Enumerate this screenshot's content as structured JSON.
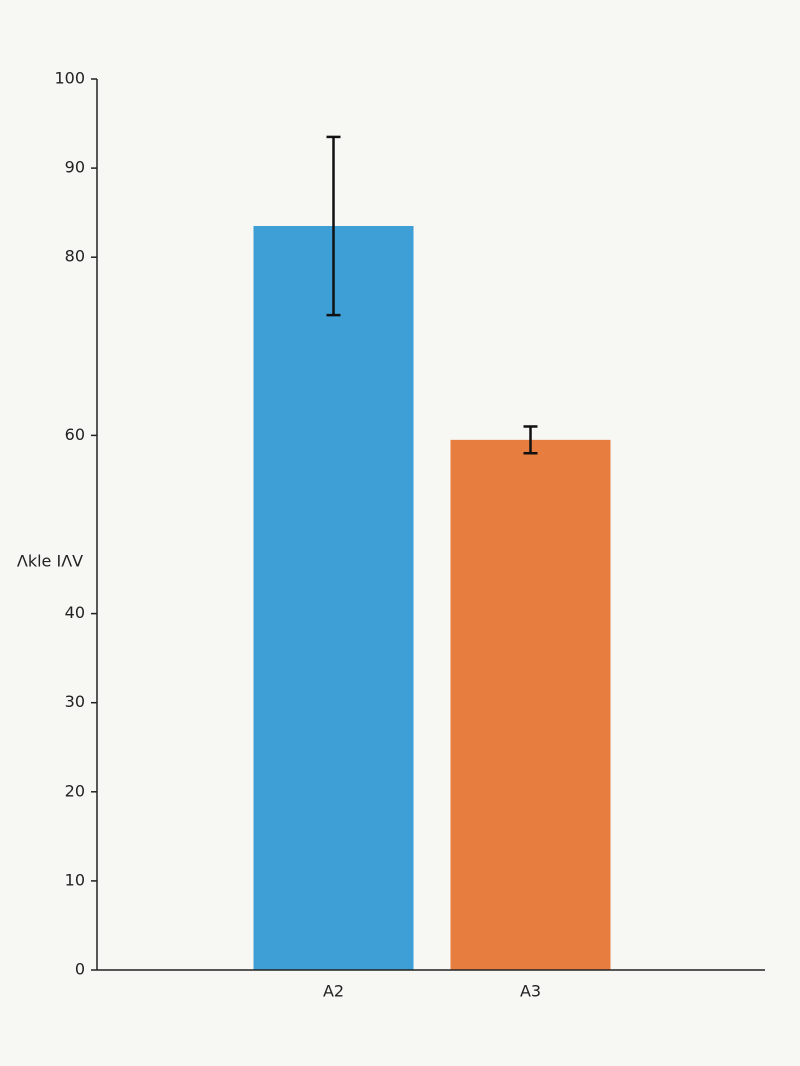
{
  "chart_data": {
    "type": "bar",
    "y_label": "Λkle IΛV",
    "categories": [
      "A2",
      "A3"
    ],
    "values": [
      83.5,
      59.5
    ],
    "errors": [
      10,
      1.5
    ],
    "colors": [
      "#3e9fd6",
      "#e87d40"
    ],
    "ylim": [
      0,
      100
    ],
    "yticks": [
      0,
      10,
      20,
      30,
      40,
      60,
      80,
      90,
      100
    ]
  }
}
